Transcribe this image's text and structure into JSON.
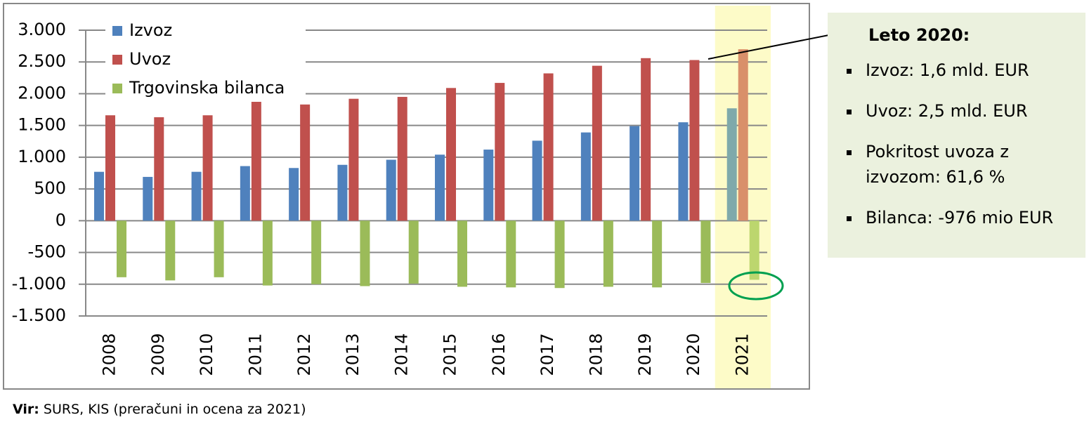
{
  "chart_data": {
    "type": "bar",
    "categories": [
      "2008",
      "2009",
      "2010",
      "2011",
      "2012",
      "2013",
      "2014",
      "2015",
      "2016",
      "2017",
      "2018",
      "2019",
      "2020",
      "2021"
    ],
    "series": [
      {
        "name": "Izvoz",
        "color": "#4f81bd",
        "highlight_color": "#7fa9ab",
        "values": [
          770,
          690,
          770,
          860,
          830,
          880,
          960,
          1040,
          1120,
          1260,
          1390,
          1490,
          1550,
          1770
        ]
      },
      {
        "name": "Uvoz",
        "color": "#c0504d",
        "highlight_color": "#d9906a",
        "values": [
          1660,
          1630,
          1660,
          1880,
          1830,
          1920,
          1950,
          2090,
          2170,
          2320,
          2440,
          2560,
          2530,
          2700
        ]
      },
      {
        "name": "Trgovinska bilanca",
        "color": "#9bbb59",
        "highlight_color": "#bcd66e",
        "values": [
          -890,
          -940,
          -890,
          -1020,
          -1000,
          -1030,
          -990,
          -1040,
          -1050,
          -1060,
          -1040,
          -1050,
          -980,
          -930
        ]
      }
    ],
    "highlight": "2021",
    "ylim": [
      -1500,
      3000
    ],
    "yticks": [
      {
        "value": 3000,
        "label": "3.000"
      },
      {
        "value": 2500,
        "label": "2.500"
      },
      {
        "value": 2000,
        "label": "2.000"
      },
      {
        "value": 1500,
        "label": "1.500"
      },
      {
        "value": 1000,
        "label": "1.000"
      },
      500,
      0,
      -500,
      {
        "value": -1000,
        "label": "-1.000"
      },
      {
        "value": -1500,
        "label": "-1.500"
      }
    ],
    "grid": true,
    "legend": "upper left",
    "annotation": {
      "title": "Leto 2020:",
      "items": [
        "Izvoz: 1,6 mld. EUR",
        "Uvoz: 2,5 mld. EUR",
        "Pokritost uvoza z izvozom: 61,6 %",
        "Bilanca:  -976 mio EUR"
      ]
    }
  },
  "source": {
    "label": "Vir:",
    "text": "SURS, KIS (preračuni in ocena za 2021)"
  }
}
